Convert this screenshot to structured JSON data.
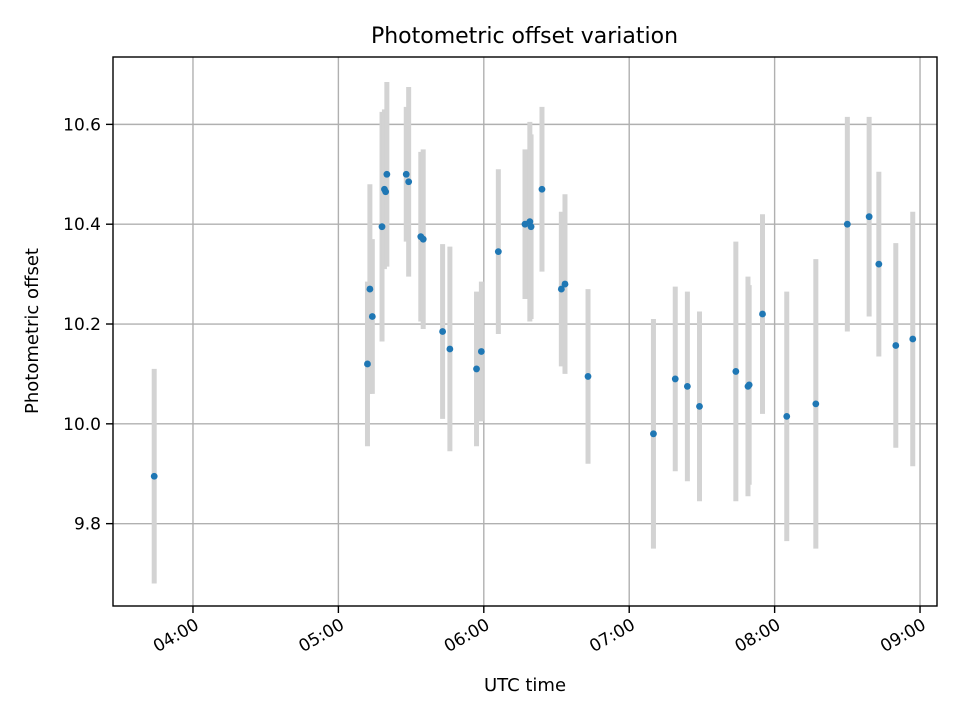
{
  "chart_data": {
    "type": "scatter",
    "title": "Photometric offset variation",
    "xlabel": "UTC time",
    "ylabel": "Photometric offset",
    "xlim": [
      "03:27",
      "09:07"
    ],
    "ylim": [
      9.635,
      10.735
    ],
    "grid": true,
    "x_ticks": [
      "04:00",
      "05:00",
      "06:00",
      "07:00",
      "08:00",
      "09:00"
    ],
    "y_ticks": [
      9.8,
      10.0,
      10.2,
      10.4,
      10.6
    ],
    "colors": {
      "points": "#1f77b4",
      "error_bars": "#d3d3d3",
      "grid": "#b0b0b0"
    },
    "series": [
      {
        "points": [
          {
            "x": "03:44",
            "y": 9.895,
            "err": 0.215
          },
          {
            "x": "05:12",
            "y": 10.12,
            "err": 0.165
          },
          {
            "x": "05:13",
            "y": 10.27,
            "err": 0.21
          },
          {
            "x": "05:14",
            "y": 10.215,
            "err": 0.155
          },
          {
            "x": "05:18",
            "y": 10.395,
            "err": 0.23
          },
          {
            "x": "05:19",
            "y": 10.47,
            "err": 0.16
          },
          {
            "x": "05:19.5",
            "y": 10.465,
            "err": 0.14
          },
          {
            "x": "05:20",
            "y": 10.5,
            "err": 0.185
          },
          {
            "x": "05:28",
            "y": 10.5,
            "err": 0.135
          },
          {
            "x": "05:29",
            "y": 10.485,
            "err": 0.19
          },
          {
            "x": "05:34",
            "y": 10.375,
            "err": 0.17
          },
          {
            "x": "05:35",
            "y": 10.37,
            "err": 0.18
          },
          {
            "x": "05:43",
            "y": 10.185,
            "err": 0.175
          },
          {
            "x": "05:46",
            "y": 10.15,
            "err": 0.205
          },
          {
            "x": "05:57",
            "y": 10.11,
            "err": 0.155
          },
          {
            "x": "05:59",
            "y": 10.145,
            "err": 0.14
          },
          {
            "x": "06:06",
            "y": 10.345,
            "err": 0.165
          },
          {
            "x": "06:17",
            "y": 10.4,
            "err": 0.15
          },
          {
            "x": "06:19",
            "y": 10.405,
            "err": 0.2
          },
          {
            "x": "06:19.5",
            "y": 10.395,
            "err": 0.185
          },
          {
            "x": "06:24",
            "y": 10.47,
            "err": 0.165
          },
          {
            "x": "06:32",
            "y": 10.27,
            "err": 0.155
          },
          {
            "x": "06:33.5",
            "y": 10.28,
            "err": 0.18
          },
          {
            "x": "06:43",
            "y": 10.095,
            "err": 0.175
          },
          {
            "x": "07:10",
            "y": 9.98,
            "err": 0.23
          },
          {
            "x": "07:19",
            "y": 10.09,
            "err": 0.185
          },
          {
            "x": "07:24",
            "y": 10.075,
            "err": 0.19
          },
          {
            "x": "07:29",
            "y": 10.035,
            "err": 0.19
          },
          {
            "x": "07:44",
            "y": 10.105,
            "err": 0.26
          },
          {
            "x": "07:49",
            "y": 10.075,
            "err": 0.22
          },
          {
            "x": "07:49.5",
            "y": 10.078,
            "err": 0.2
          },
          {
            "x": "07:55",
            "y": 10.22,
            "err": 0.2
          },
          {
            "x": "08:05",
            "y": 10.015,
            "err": 0.25
          },
          {
            "x": "08:17",
            "y": 10.04,
            "err": 0.29
          },
          {
            "x": "08:30",
            "y": 10.4,
            "err": 0.215
          },
          {
            "x": "08:39",
            "y": 10.415,
            "err": 0.2
          },
          {
            "x": "08:43",
            "y": 10.32,
            "err": 0.185
          },
          {
            "x": "08:50",
            "y": 10.157,
            "err": 0.205
          },
          {
            "x": "08:57",
            "y": 10.17,
            "err": 0.255
          }
        ]
      }
    ]
  }
}
